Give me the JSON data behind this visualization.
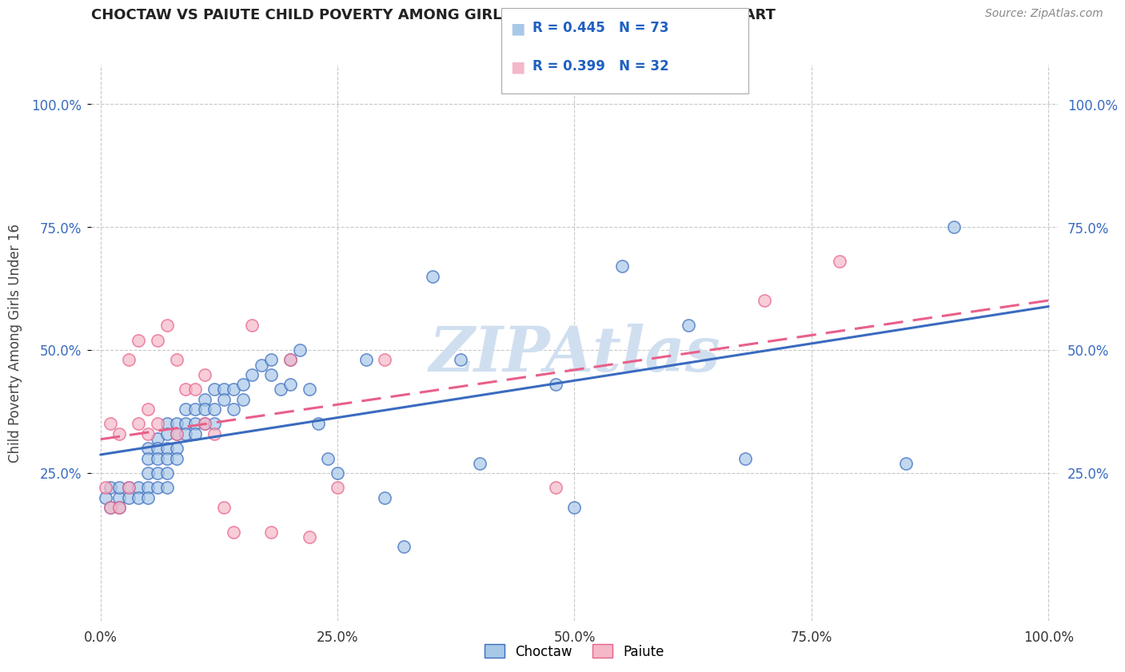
{
  "title": "CHOCTAW VS PAIUTE CHILD POVERTY AMONG GIRLS UNDER 16 CORRELATION CHART",
  "source": "Source: ZipAtlas.com",
  "ylabel": "Child Poverty Among Girls Under 16",
  "watermark": "ZIPAtlas",
  "choctaw_R": 0.445,
  "choctaw_N": 73,
  "paiute_R": 0.399,
  "paiute_N": 32,
  "choctaw_color": "#a8c8e8",
  "paiute_color": "#f4b8c8",
  "choctaw_line_color": "#3a6bbf",
  "paiute_line_color": "#e8608a",
  "background_color": "#ffffff",
  "grid_color": "#c8c8c8",
  "watermark_color": "#d0dff0",
  "choctaw_x": [
    0.005,
    0.01,
    0.01,
    0.02,
    0.02,
    0.02,
    0.03,
    0.03,
    0.04,
    0.04,
    0.05,
    0.05,
    0.05,
    0.05,
    0.05,
    0.06,
    0.06,
    0.06,
    0.06,
    0.06,
    0.07,
    0.07,
    0.07,
    0.07,
    0.07,
    0.07,
    0.08,
    0.08,
    0.08,
    0.08,
    0.09,
    0.09,
    0.09,
    0.1,
    0.1,
    0.1,
    0.11,
    0.11,
    0.11,
    0.12,
    0.12,
    0.12,
    0.13,
    0.13,
    0.14,
    0.14,
    0.15,
    0.15,
    0.16,
    0.17,
    0.18,
    0.18,
    0.19,
    0.2,
    0.2,
    0.21,
    0.22,
    0.23,
    0.24,
    0.25,
    0.28,
    0.3,
    0.32,
    0.35,
    0.38,
    0.4,
    0.48,
    0.5,
    0.55,
    0.62,
    0.68,
    0.85,
    0.9
  ],
  "choctaw_y": [
    0.2,
    0.18,
    0.22,
    0.2,
    0.22,
    0.18,
    0.22,
    0.2,
    0.22,
    0.2,
    0.3,
    0.28,
    0.25,
    0.22,
    0.2,
    0.32,
    0.3,
    0.28,
    0.25,
    0.22,
    0.35,
    0.33,
    0.3,
    0.28,
    0.25,
    0.22,
    0.35,
    0.33,
    0.3,
    0.28,
    0.38,
    0.35,
    0.33,
    0.38,
    0.35,
    0.33,
    0.4,
    0.38,
    0.35,
    0.42,
    0.38,
    0.35,
    0.42,
    0.4,
    0.42,
    0.38,
    0.43,
    0.4,
    0.45,
    0.47,
    0.48,
    0.45,
    0.42,
    0.48,
    0.43,
    0.5,
    0.42,
    0.35,
    0.28,
    0.25,
    0.48,
    0.2,
    0.1,
    0.65,
    0.48,
    0.27,
    0.43,
    0.18,
    0.67,
    0.55,
    0.28,
    0.27,
    0.75
  ],
  "paiute_x": [
    0.005,
    0.01,
    0.01,
    0.02,
    0.02,
    0.03,
    0.03,
    0.04,
    0.04,
    0.05,
    0.05,
    0.06,
    0.06,
    0.07,
    0.08,
    0.08,
    0.09,
    0.1,
    0.11,
    0.11,
    0.12,
    0.13,
    0.14,
    0.16,
    0.18,
    0.2,
    0.22,
    0.25,
    0.3,
    0.48,
    0.7,
    0.78
  ],
  "paiute_y": [
    0.22,
    0.35,
    0.18,
    0.33,
    0.18,
    0.22,
    0.48,
    0.35,
    0.52,
    0.38,
    0.33,
    0.35,
    0.52,
    0.55,
    0.33,
    0.48,
    0.42,
    0.42,
    0.35,
    0.45,
    0.33,
    0.18,
    0.13,
    0.55,
    0.13,
    0.48,
    0.12,
    0.22,
    0.48,
    0.22,
    0.6,
    0.68
  ],
  "xlim": [
    -0.01,
    1.01
  ],
  "ylim": [
    -0.05,
    1.08
  ],
  "plot_xlim": [
    0.0,
    1.0
  ],
  "x_ticks": [
    0.0,
    0.25,
    0.5,
    0.75,
    1.0
  ],
  "x_tick_labels": [
    "0.0%",
    "25.0%",
    "50.0%",
    "75.0%",
    "100.0%"
  ],
  "y_ticks": [
    0.25,
    0.5,
    0.75,
    1.0
  ],
  "y_tick_labels": [
    "25.0%",
    "50.0%",
    "75.0%",
    "100.0%"
  ]
}
